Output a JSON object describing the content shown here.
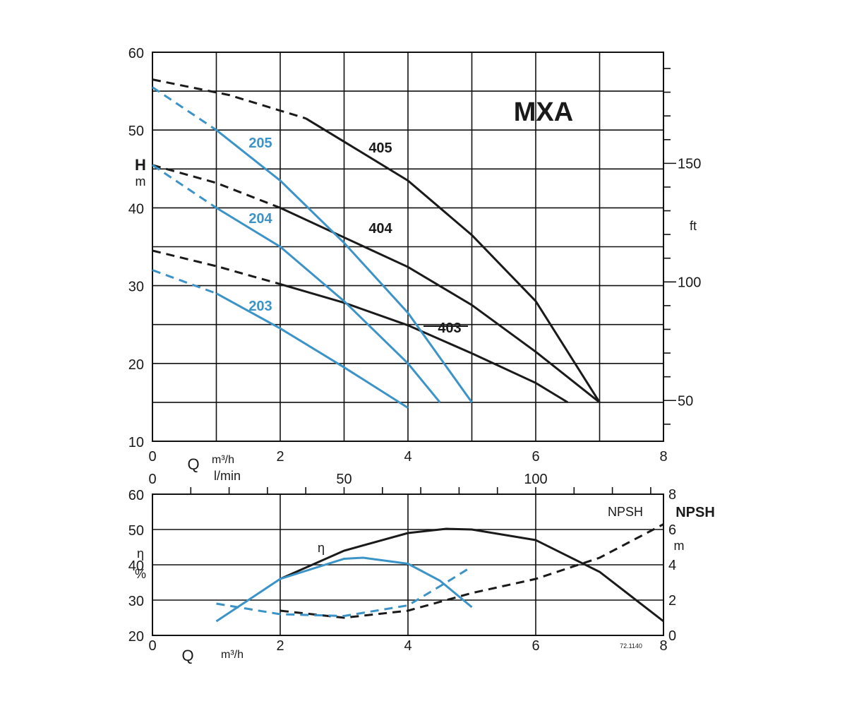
{
  "colors": {
    "black": "#1a1a1a",
    "blue": "#3b93c8",
    "grid": "#111111"
  },
  "chart_data": [
    {
      "id": "head-chart",
      "type": "line",
      "title": "MXA",
      "y_label": "H",
      "y_unit": "m",
      "y_right_unit": "ft",
      "x_q_label": "Q",
      "x_unit_m3h": "m³/h",
      "x_unit_lmin": "l/min",
      "xlim": [
        0,
        8
      ],
      "ylim": [
        10,
        60
      ],
      "y_ticks": [
        "60",
        "50",
        "40",
        "30",
        "20",
        "10"
      ],
      "x_ticks": [
        "0",
        "2",
        "4",
        "6",
        "8"
      ],
      "x2_ticks": [
        "0",
        "50",
        "100"
      ],
      "y_right_ticks": [
        "150",
        "100",
        "50"
      ],
      "grid": true,
      "series": [
        {
          "name": "405",
          "color": "black",
          "dashed": [
            [
              0,
              56.5
            ],
            [
              1.2,
              54.5
            ],
            [
              2.4,
              51.5
            ]
          ],
          "values": [
            [
              2.4,
              51.5
            ],
            [
              3,
              48.5
            ],
            [
              4,
              43.5
            ],
            [
              5,
              36.5
            ],
            [
              6,
              28
            ],
            [
              7,
              15
            ]
          ]
        },
        {
          "name": "404",
          "color": "black",
          "dashed": [
            [
              0,
              45.5
            ],
            [
              1,
              43.2
            ],
            [
              2,
              40
            ]
          ],
          "values": [
            [
              2,
              40
            ],
            [
              3,
              36.2
            ],
            [
              4,
              32.4
            ],
            [
              5,
              27.5
            ],
            [
              6,
              21.5
            ],
            [
              7,
              15
            ]
          ]
        },
        {
          "name": "403",
          "color": "black",
          "dashed": [
            [
              0,
              34.5
            ],
            [
              1,
              32.5
            ],
            [
              2,
              30.2
            ]
          ],
          "values": [
            [
              2,
              30.2
            ],
            [
              3,
              27.8
            ],
            [
              4,
              24.9
            ],
            [
              5,
              21.3
            ],
            [
              6,
              17.5
            ],
            [
              6.5,
              15
            ]
          ]
        },
        {
          "name": "205",
          "color": "blue",
          "dashed": [
            [
              0,
              55.5
            ],
            [
              1,
              50
            ]
          ],
          "values": [
            [
              1,
              50
            ],
            [
              2,
              43.5
            ],
            [
              3,
              35.5
            ],
            [
              4,
              26.5
            ],
            [
              5,
              15
            ]
          ]
        },
        {
          "name": "204",
          "color": "blue",
          "dashed": [
            [
              0,
              45.5
            ],
            [
              1,
              40
            ]
          ],
          "values": [
            [
              1,
              40
            ],
            [
              2,
              35
            ],
            [
              3,
              28
            ],
            [
              4,
              20
            ],
            [
              4.5,
              15
            ]
          ]
        },
        {
          "name": "203",
          "color": "blue",
          "dashed": [
            [
              0,
              32
            ],
            [
              1,
              29
            ]
          ],
          "values": [
            [
              1,
              29
            ],
            [
              2,
              24.5
            ],
            [
              3,
              19.5
            ],
            [
              4,
              14.3
            ]
          ]
        }
      ]
    },
    {
      "id": "efficiency-npsh-chart",
      "type": "line",
      "y_label": "η",
      "y_unit": "%",
      "y_right_label": "NPSH",
      "y_right_unit": "m",
      "npsh_label": "NPSH",
      "x_q_label": "Q",
      "x_unit_m3h": "m³/h",
      "xlim": [
        0,
        8
      ],
      "ylim": [
        20,
        60
      ],
      "y_right_lim": [
        0,
        8
      ],
      "y_ticks": [
        "60",
        "50",
        "40",
        "30",
        "20"
      ],
      "x_ticks": [
        "0",
        "2",
        "4",
        "6",
        "8"
      ],
      "y_right_ticks": [
        "8",
        "6",
        "4",
        "2",
        "0"
      ],
      "ref_code": "72.1140",
      "grid": true,
      "series": [
        {
          "name": "η",
          "kind": "efficiency",
          "color": "black",
          "values": [
            [
              2,
              36
            ],
            [
              3,
              44
            ],
            [
              4,
              49
            ],
            [
              4.6,
              50.2
            ],
            [
              5,
              50
            ],
            [
              6,
              47
            ],
            [
              7,
              38
            ],
            [
              8,
              24
            ]
          ]
        },
        {
          "kind": "efficiency",
          "color": "blue",
          "values": [
            [
              1,
              24
            ],
            [
              2,
              36
            ],
            [
              3,
              41.7
            ],
            [
              3.3,
              42
            ],
            [
              4,
              40.3
            ],
            [
              4.5,
              35.5
            ],
            [
              5,
              28
            ]
          ]
        },
        {
          "kind": "npsh",
          "color": "black",
          "dashed_only": true,
          "values": [
            [
              2,
              1.4
            ],
            [
              3,
              1
            ],
            [
              4,
              1.4
            ],
            [
              5,
              2.4
            ],
            [
              6,
              3.2
            ],
            [
              7,
              4.4
            ],
            [
              8,
              6.3
            ]
          ]
        },
        {
          "kind": "npsh",
          "color": "blue",
          "dashed_only": true,
          "values": [
            [
              1,
              1.8
            ],
            [
              2,
              1.2
            ],
            [
              3,
              1.1
            ],
            [
              4,
              1.7
            ],
            [
              4.6,
              3
            ],
            [
              5,
              3.9
            ]
          ]
        }
      ]
    }
  ]
}
